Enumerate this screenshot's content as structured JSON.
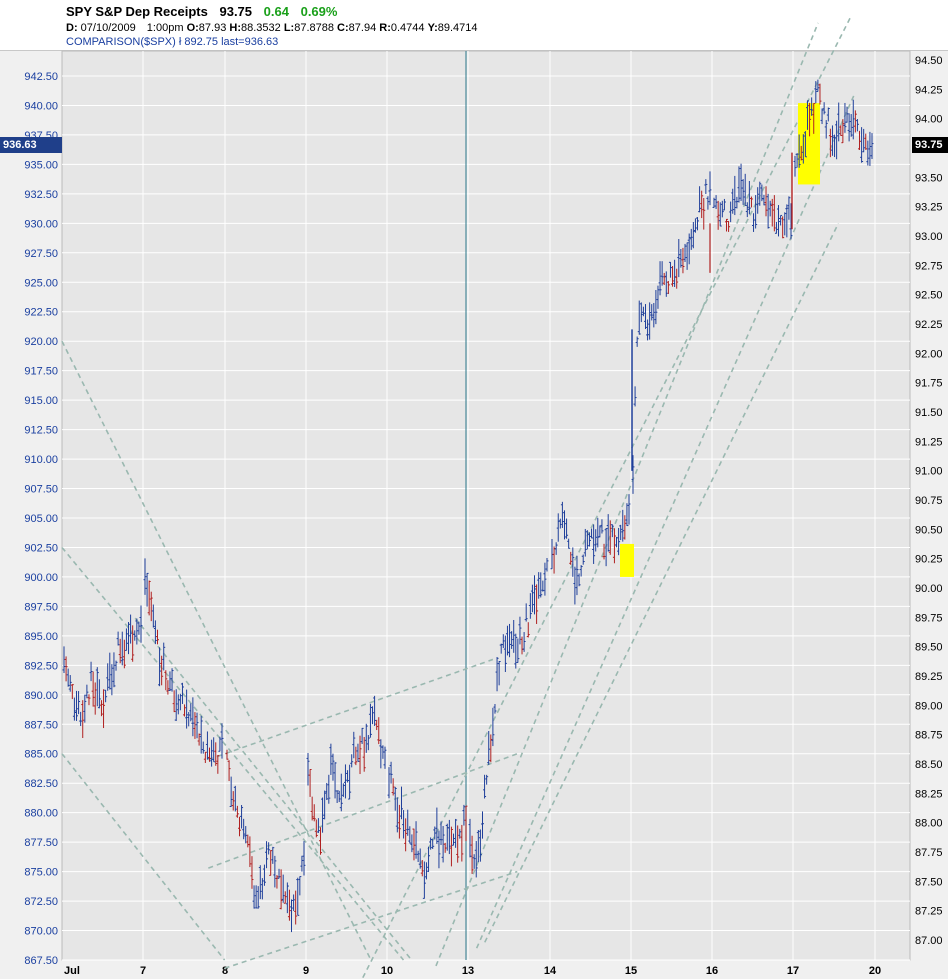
{
  "header": {
    "title": "SPY S&P Dep Receipts",
    "last": "93.75",
    "change": "0.64",
    "change_pct": "0.69%",
    "d_label": "D:",
    "date": "07/10/2009",
    "time": "1:00pm",
    "o_label": "O:",
    "open": "87.93",
    "h_label": "H:",
    "high": "88.3532",
    "l_label": "L:",
    "low": "87.8788",
    "c_label": "C:",
    "close": "87.94",
    "r_label": "R:",
    "range": "0.4744",
    "y_label": "Y:",
    "y": "89.4714",
    "comparison": "COMPARISON($SPX) ł 892.75 last=936.63"
  },
  "tags": {
    "left": "936.63",
    "right": "93.75"
  },
  "colors": {
    "up_bar": "#1f3f9a",
    "down_bar": "#b02020",
    "channel": "#9ab8b0",
    "highlight": "#ffff00",
    "axis_text_left": "#1a3fa0"
  },
  "chart_data": {
    "type": "bar",
    "subtype": "ohlc-intraday",
    "series": [
      {
        "name": "SPY",
        "axis": "right"
      },
      {
        "name": "$SPX",
        "axis": "left"
      }
    ],
    "left_axis": {
      "ticks": [
        "942.50",
        "940.00",
        "937.50",
        "935.00",
        "932.50",
        "930.00",
        "927.50",
        "925.00",
        "922.50",
        "920.00",
        "917.50",
        "915.00",
        "912.50",
        "910.00",
        "907.50",
        "905.00",
        "902.50",
        "900.00",
        "897.50",
        "895.00",
        "892.50",
        "890.00",
        "887.50",
        "885.00",
        "882.50",
        "880.00",
        "877.50",
        "875.00",
        "872.50",
        "870.00",
        "867.50"
      ],
      "range": [
        867.5,
        942.5
      ]
    },
    "right_axis": {
      "ticks": [
        "94.50",
        "94.25",
        "94.00",
        "93.75",
        "93.50",
        "93.25",
        "93.00",
        "92.75",
        "92.50",
        "92.25",
        "92.00",
        "91.75",
        "91.50",
        "91.25",
        "91.00",
        "90.75",
        "90.50",
        "90.25",
        "90.00",
        "89.75",
        "89.50",
        "89.25",
        "89.00",
        "88.75",
        "88.50",
        "88.25",
        "88.00",
        "87.75",
        "87.50",
        "87.25",
        "87.00"
      ],
      "range": [
        87.0,
        94.5
      ]
    },
    "x_axis": {
      "labels": [
        "Jul",
        "7",
        "8",
        "9",
        "10",
        "13",
        "14",
        "15",
        "16",
        "17",
        "20"
      ]
    },
    "grid": true,
    "sessions": [
      {
        "label": "Jul",
        "points": [
          [
            0,
            893
          ],
          [
            0.2,
            888
          ],
          [
            0.35,
            891
          ],
          [
            0.5,
            889
          ],
          [
            0.7,
            894
          ],
          [
            0.85,
            895
          ],
          [
            1,
            896
          ]
        ]
      },
      {
        "label": "7",
        "points": [
          [
            0,
            899
          ],
          [
            0.1,
            897
          ],
          [
            0.2,
            893
          ],
          [
            0.4,
            890
          ],
          [
            0.6,
            888
          ],
          [
            0.8,
            885
          ],
          [
            1,
            885
          ]
        ]
      },
      {
        "label": "8",
        "points": [
          [
            0,
            884
          ],
          [
            0.15,
            880
          ],
          [
            0.3,
            876
          ],
          [
            0.4,
            872
          ],
          [
            0.55,
            877
          ],
          [
            0.7,
            874
          ],
          [
            0.85,
            871
          ],
          [
            1,
            876
          ]
        ]
      },
      {
        "label": "9",
        "points": [
          [
            0,
            883
          ],
          [
            0.15,
            878
          ],
          [
            0.3,
            884
          ],
          [
            0.45,
            881
          ],
          [
            0.6,
            885
          ],
          [
            0.75,
            886
          ],
          [
            0.85,
            888
          ],
          [
            1,
            884
          ]
        ]
      },
      {
        "label": "10",
        "points": [
          [
            0,
            883
          ],
          [
            0.15,
            880
          ],
          [
            0.3,
            878
          ],
          [
            0.45,
            874
          ],
          [
            0.6,
            878
          ],
          [
            0.8,
            877
          ],
          [
            1,
            879
          ]
        ]
      },
      {
        "label": "13",
        "points": [
          [
            0,
            878
          ],
          [
            0.1,
            876
          ],
          [
            0.25,
            885
          ],
          [
            0.4,
            894
          ],
          [
            0.6,
            894
          ],
          [
            0.8,
            897
          ],
          [
            1,
            901
          ]
        ]
      },
      {
        "label": "14",
        "points": [
          [
            0,
            901
          ],
          [
            0.15,
            905
          ],
          [
            0.3,
            899
          ],
          [
            0.5,
            904
          ],
          [
            0.7,
            903
          ],
          [
            0.85,
            904
          ],
          [
            1,
            905
          ]
        ]
      },
      {
        "label": "15",
        "points": [
          [
            0,
            909
          ],
          [
            0.05,
            921
          ],
          [
            0.2,
            922
          ],
          [
            0.4,
            925
          ],
          [
            0.6,
            926
          ],
          [
            0.8,
            930
          ],
          [
            1,
            933
          ]
        ]
      },
      {
        "label": "16",
        "points": [
          [
            0,
            932
          ],
          [
            0.2,
            930
          ],
          [
            0.35,
            933
          ],
          [
            0.5,
            931
          ],
          [
            0.7,
            932
          ],
          [
            0.85,
            930
          ],
          [
            1,
            931
          ]
        ]
      },
      {
        "label": "17",
        "points": [
          [
            0,
            934
          ],
          [
            0.15,
            938
          ],
          [
            0.3,
            941
          ],
          [
            0.5,
            937
          ],
          [
            0.7,
            939
          ],
          [
            0.9,
            937
          ],
          [
            1,
            936.6
          ]
        ]
      }
    ]
  }
}
